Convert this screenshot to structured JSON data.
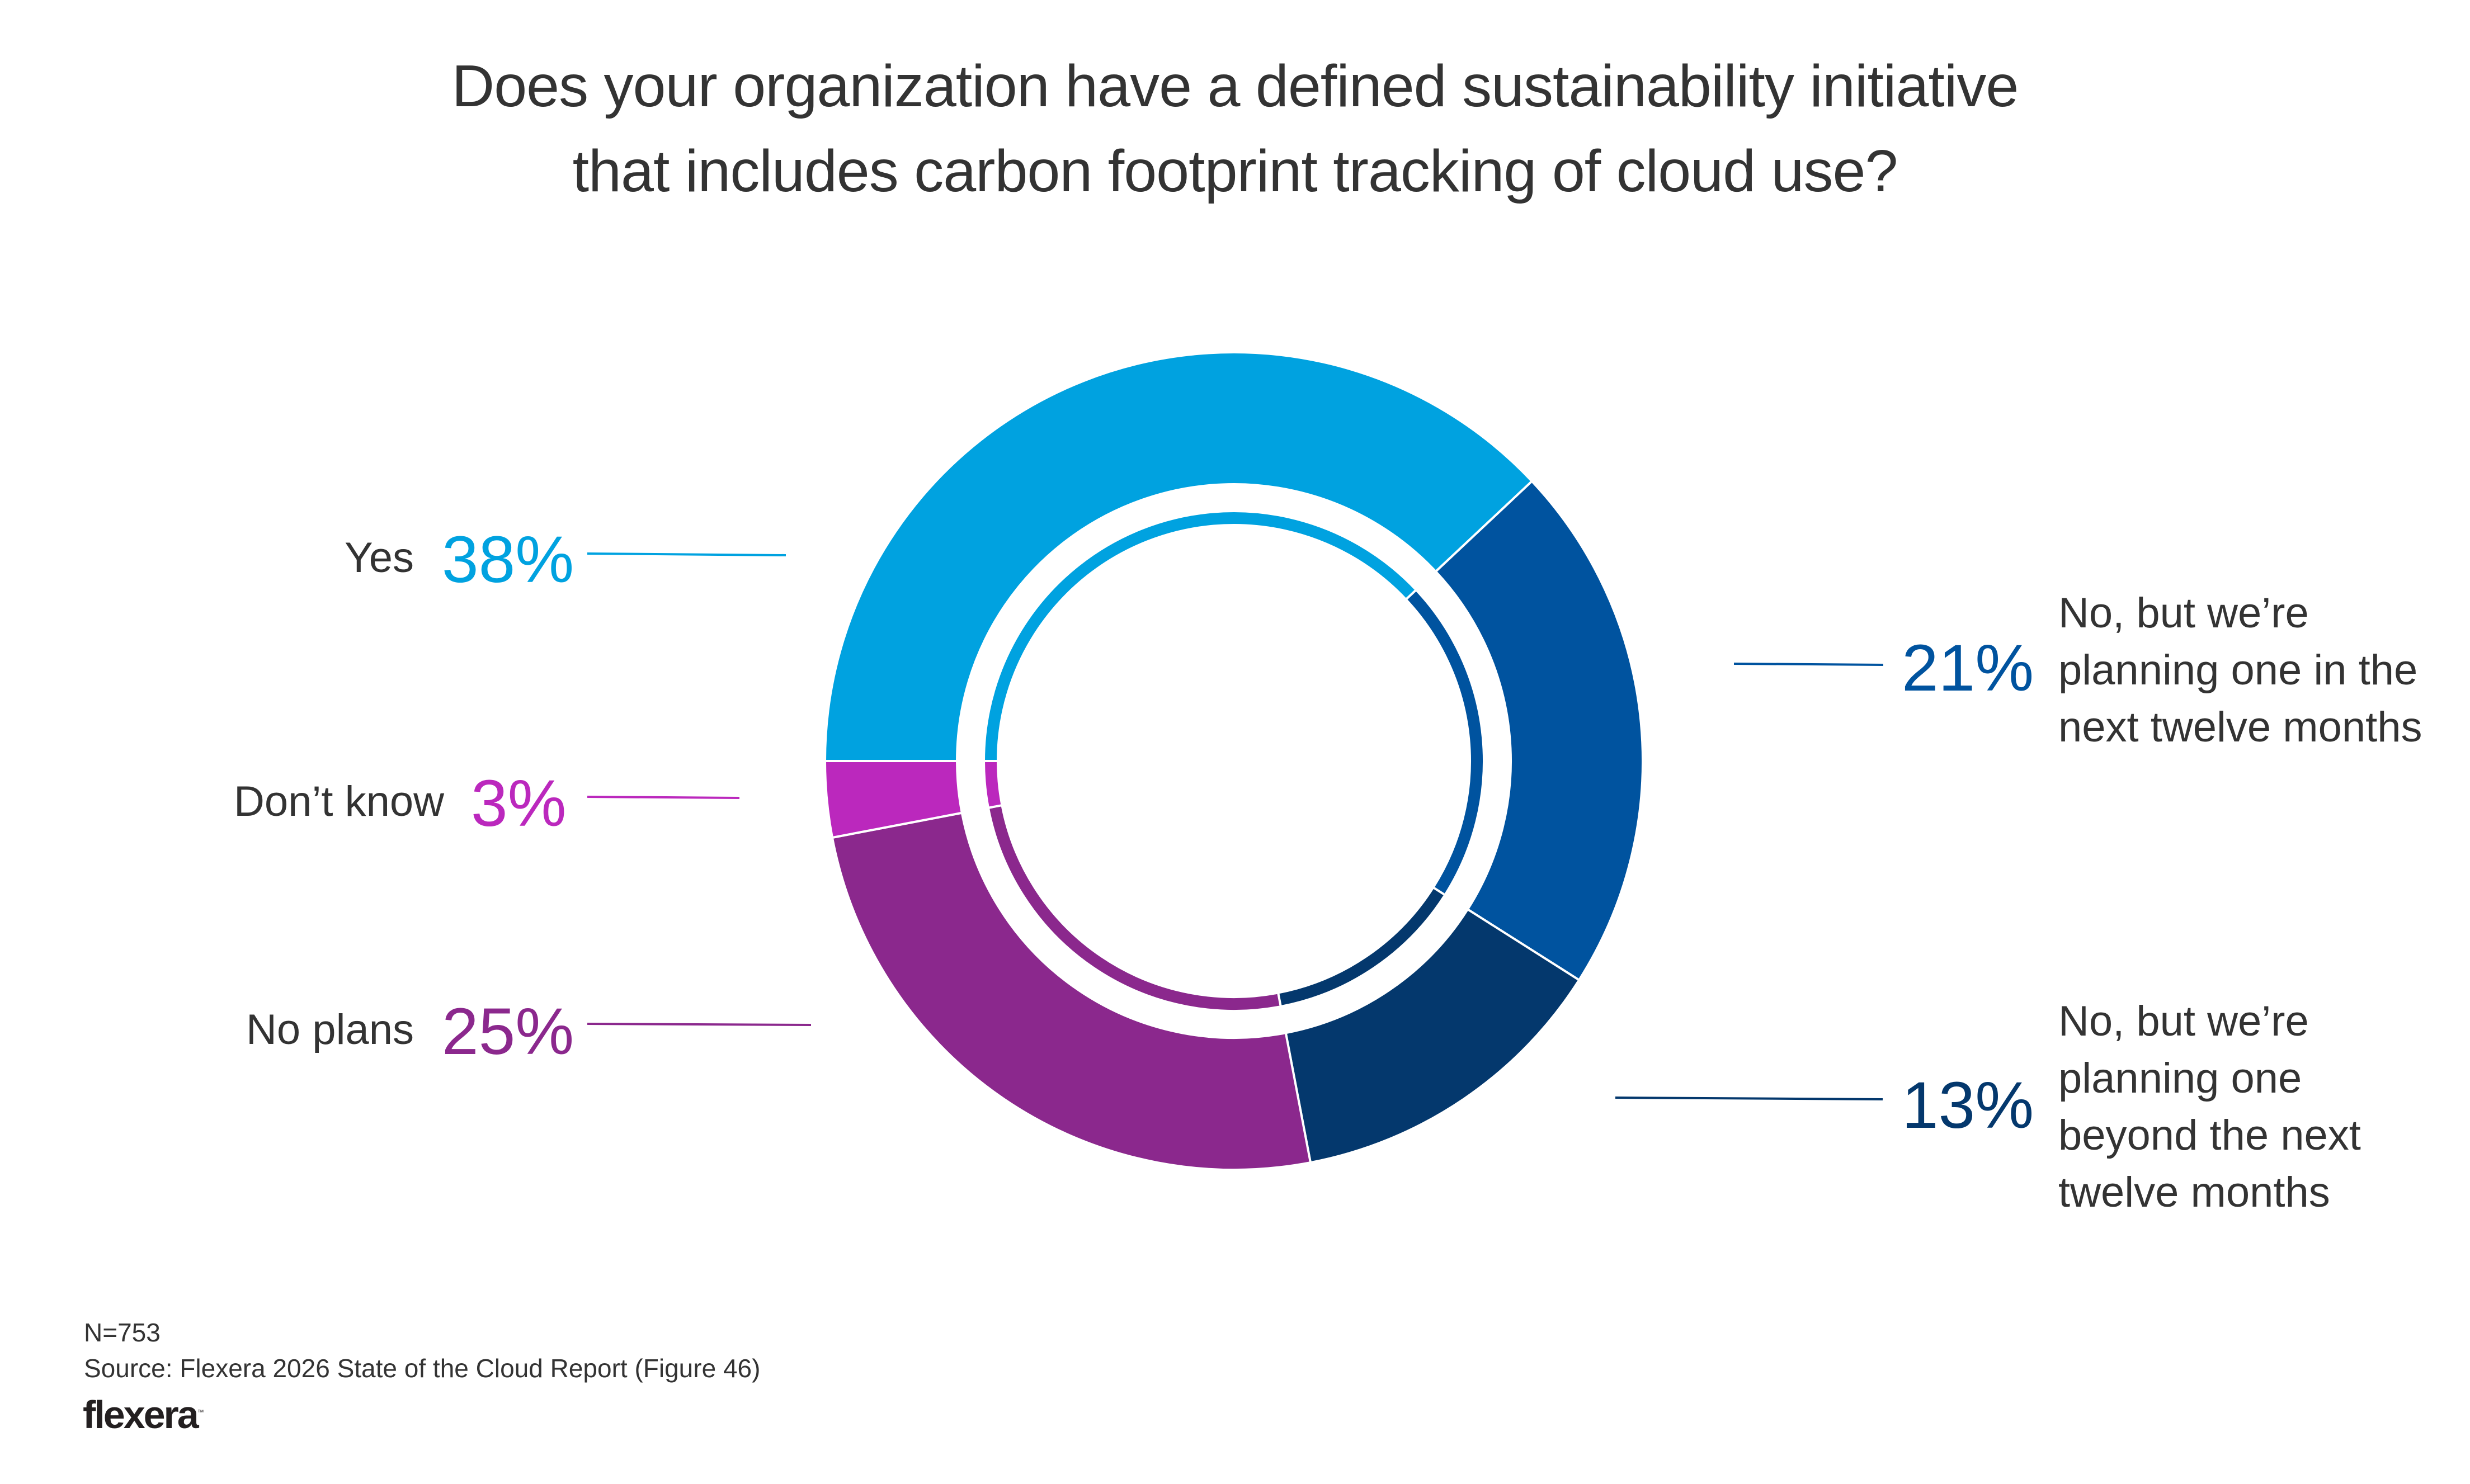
{
  "title": {
    "line1": "Does your organization have a defined sustainability initiative",
    "line2": "that includes carbon footprint tracking of cloud use?"
  },
  "chart_data": {
    "type": "pie",
    "variant": "donut",
    "title": "Does your organization have a defined sustainability initiative that includes carbon footprint tracking of cloud use?",
    "start": "9 o'clock, clockwise",
    "series": [
      {
        "name": "Yes",
        "label": "Yes",
        "value": 38,
        "display": "38%",
        "color": "#00A2E0",
        "side": "left"
      },
      {
        "name": "No, but we're planning one in the next twelve months",
        "label": "No, but we’re\nplanning one in the\nnext twelve months",
        "value": 21,
        "display": "21%",
        "color": "#00539F",
        "side": "right"
      },
      {
        "name": "No, but we're planning one beyond the next twelve months",
        "label": "No, but we’re\nplanning one\nbeyond the next\ntwelve months",
        "value": 13,
        "display": "13%",
        "color": "#04386D",
        "side": "right"
      },
      {
        "name": "No plans",
        "label": "No plans",
        "value": 25,
        "display": "25%",
        "color": "#8B288D",
        "side": "left"
      },
      {
        "name": "Don't know",
        "label": "Don’t know",
        "value": 3,
        "display": "3%",
        "color": "#BB28BD",
        "side": "left"
      }
    ]
  },
  "footer": {
    "sample": "N=753",
    "source": "Source: Flexera 2026 State of the Cloud Report (Figure 46)",
    "logo": "flexera",
    "logo_tm": "™"
  }
}
